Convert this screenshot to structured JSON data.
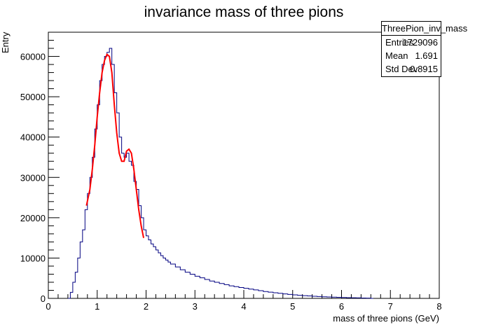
{
  "chart_data": {
    "type": "histogram",
    "title": "invariance mass of three pions",
    "xlabel": "mass of three pions (GeV)",
    "ylabel": "Entry",
    "xlim": [
      0,
      8
    ],
    "ylim": [
      0,
      66000
    ],
    "x_ticks": [
      "0",
      "1",
      "2",
      "3",
      "4",
      "5",
      "6",
      "7",
      "8"
    ],
    "y_ticks": [
      "0",
      "10000",
      "20000",
      "30000",
      "40000",
      "50000",
      "60000"
    ],
    "bin_width": 0.05,
    "bins": [
      [
        0.4,
        0
      ],
      [
        0.45,
        1500
      ],
      [
        0.5,
        4000
      ],
      [
        0.55,
        6500
      ],
      [
        0.6,
        10000
      ],
      [
        0.65,
        14000
      ],
      [
        0.7,
        17000
      ],
      [
        0.75,
        22000
      ],
      [
        0.8,
        26000
      ],
      [
        0.85,
        30000
      ],
      [
        0.9,
        35000
      ],
      [
        0.95,
        42000
      ],
      [
        1.0,
        48000
      ],
      [
        1.05,
        54000
      ],
      [
        1.1,
        58000
      ],
      [
        1.15,
        60000
      ],
      [
        1.2,
        61000
      ],
      [
        1.25,
        62000
      ],
      [
        1.3,
        58000
      ],
      [
        1.35,
        51000
      ],
      [
        1.4,
        46000
      ],
      [
        1.45,
        40000
      ],
      [
        1.5,
        36000
      ],
      [
        1.55,
        35000
      ],
      [
        1.6,
        36000
      ],
      [
        1.65,
        34000
      ],
      [
        1.7,
        33000
      ],
      [
        1.75,
        29000
      ],
      [
        1.8,
        27000
      ],
      [
        1.85,
        23000
      ],
      [
        1.9,
        20000
      ],
      [
        1.95,
        17000
      ],
      [
        2.0,
        15500
      ],
      [
        2.05,
        14500
      ],
      [
        2.1,
        13500
      ],
      [
        2.15,
        12800
      ],
      [
        2.2,
        12000
      ],
      [
        2.25,
        11300
      ],
      [
        2.3,
        10600
      ],
      [
        2.35,
        10000
      ],
      [
        2.4,
        9500
      ],
      [
        2.45,
        9000
      ],
      [
        2.5,
        8500
      ],
      [
        2.6,
        7800
      ],
      [
        2.7,
        7100
      ],
      [
        2.8,
        6500
      ],
      [
        2.9,
        6000
      ],
      [
        3.0,
        5500
      ],
      [
        3.1,
        5100
      ],
      [
        3.2,
        4700
      ],
      [
        3.3,
        4300
      ],
      [
        3.4,
        4000
      ],
      [
        3.5,
        3700
      ],
      [
        3.6,
        3400
      ],
      [
        3.7,
        3100
      ],
      [
        3.8,
        2900
      ],
      [
        3.9,
        2700
      ],
      [
        4.0,
        2500
      ],
      [
        4.1,
        2300
      ],
      [
        4.2,
        2100
      ],
      [
        4.3,
        1900
      ],
      [
        4.4,
        1700
      ],
      [
        4.5,
        1550
      ],
      [
        4.6,
        1400
      ],
      [
        4.7,
        1250
      ],
      [
        4.8,
        1100
      ],
      [
        4.9,
        980
      ],
      [
        5.0,
        870
      ],
      [
        5.1,
        770
      ],
      [
        5.2,
        680
      ],
      [
        5.3,
        600
      ],
      [
        5.4,
        530
      ],
      [
        5.5,
        460
      ],
      [
        5.6,
        400
      ],
      [
        5.7,
        350
      ],
      [
        5.8,
        300
      ],
      [
        5.9,
        260
      ],
      [
        6.0,
        220
      ],
      [
        6.1,
        180
      ],
      [
        6.2,
        150
      ],
      [
        6.3,
        120
      ],
      [
        6.4,
        90
      ],
      [
        6.5,
        60
      ],
      [
        6.6,
        0
      ]
    ],
    "fit_curve": [
      [
        0.78,
        23000
      ],
      [
        0.85,
        27000
      ],
      [
        0.9,
        32000
      ],
      [
        0.95,
        38000
      ],
      [
        1.0,
        45000
      ],
      [
        1.05,
        51000
      ],
      [
        1.1,
        56000
      ],
      [
        1.15,
        59000
      ],
      [
        1.2,
        60500
      ],
      [
        1.25,
        60000
      ],
      [
        1.3,
        56000
      ],
      [
        1.35,
        48000
      ],
      [
        1.4,
        41000
      ],
      [
        1.45,
        36000
      ],
      [
        1.5,
        34000
      ],
      [
        1.55,
        34000
      ],
      [
        1.6,
        36500
      ],
      [
        1.65,
        37000
      ],
      [
        1.7,
        36000
      ],
      [
        1.75,
        32000
      ],
      [
        1.8,
        27000
      ],
      [
        1.85,
        22000
      ],
      [
        1.9,
        18000
      ],
      [
        1.95,
        15000
      ]
    ],
    "grid": false
  },
  "stats": {
    "name": "ThreePion_inv_mass",
    "rows": [
      {
        "key": "Entries",
        "value": "1729096"
      },
      {
        "key": "Mean",
        "value": "1.691"
      },
      {
        "key": "Std Dev",
        "value": "0.8915"
      }
    ]
  },
  "colors": {
    "histogram": "#000080",
    "fit": "#ff0000",
    "axis": "#000000"
  }
}
